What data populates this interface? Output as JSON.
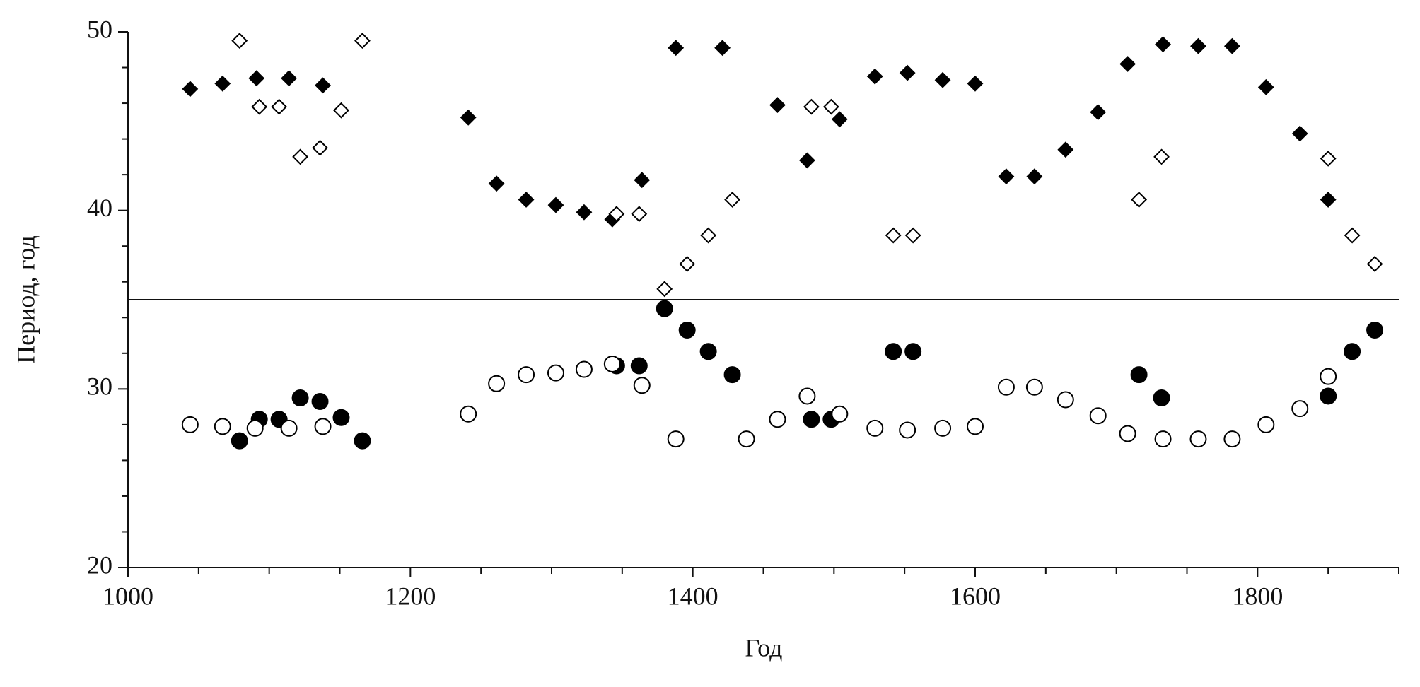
{
  "chart_data": {
    "type": "scatter",
    "x_label": "Год",
    "y_label": "Период, год",
    "xlim": [
      1000,
      1900
    ],
    "ylim": [
      20,
      50
    ],
    "xticks": [
      1000,
      1200,
      1400,
      1600,
      1800
    ],
    "yticks": [
      20,
      30,
      40,
      50
    ],
    "x_minor_ticks": [
      1050,
      1100,
      1150,
      1250,
      1300,
      1350,
      1450,
      1500,
      1550,
      1650,
      1700,
      1750,
      1850,
      1900
    ],
    "y_minor_ticks": [
      22,
      24,
      26,
      28,
      32,
      34,
      36,
      38,
      42,
      44,
      46,
      48
    ],
    "hline": 35,
    "series": [
      {
        "marker": "diamond",
        "filled": true,
        "color": "#000000",
        "x": [
          1044,
          1067,
          1091,
          1114,
          1138,
          1241,
          1261,
          1282,
          1303,
          1323,
          1343,
          1364,
          1388,
          1421,
          1460,
          1481,
          1504,
          1529,
          1552,
          1577,
          1600,
          1622,
          1642,
          1664,
          1687,
          1708,
          1733,
          1758,
          1782,
          1806,
          1830,
          1850
        ],
        "values": [
          46.8,
          47.1,
          47.4,
          47.4,
          47.0,
          45.2,
          41.5,
          40.6,
          40.3,
          39.9,
          39.5,
          41.7,
          49.1,
          49.1,
          45.9,
          42.8,
          45.1,
          47.5,
          47.7,
          47.3,
          47.1,
          41.9,
          41.9,
          43.4,
          45.5,
          48.2,
          49.3,
          49.2,
          49.2,
          46.9,
          44.3,
          40.6
        ]
      },
      {
        "marker": "diamond",
        "filled": false,
        "color": "#000000",
        "x": [
          1079,
          1093,
          1107,
          1122,
          1136,
          1151,
          1166,
          1346,
          1362,
          1380,
          1396,
          1411,
          1428,
          1484,
          1498,
          1542,
          1556,
          1716,
          1732,
          1850,
          1867,
          1883
        ],
        "values": [
          49.5,
          45.8,
          45.8,
          43.0,
          43.5,
          45.6,
          49.5,
          39.8,
          39.8,
          35.6,
          37.0,
          38.6,
          40.6,
          45.8,
          45.8,
          38.6,
          38.6,
          40.6,
          43.0,
          42.9,
          38.6,
          37.0
        ]
      },
      {
        "marker": "circle",
        "filled": true,
        "color": "#000000",
        "x": [
          1079,
          1093,
          1107,
          1122,
          1136,
          1151,
          1166,
          1346,
          1362,
          1380,
          1396,
          1411,
          1428,
          1484,
          1498,
          1542,
          1556,
          1716,
          1732,
          1850,
          1867,
          1883
        ],
        "values": [
          27.1,
          28.3,
          28.3,
          29.5,
          29.3,
          28.4,
          27.1,
          31.3,
          31.3,
          34.5,
          33.3,
          32.1,
          30.8,
          28.3,
          28.3,
          32.1,
          32.1,
          30.8,
          29.5,
          29.6,
          32.1,
          33.3
        ]
      },
      {
        "marker": "circle",
        "filled": false,
        "color": "#000000",
        "x": [
          1044,
          1067,
          1090,
          1114,
          1138,
          1241,
          1261,
          1282,
          1303,
          1323,
          1343,
          1364,
          1388,
          1438,
          1460,
          1481,
          1504,
          1529,
          1552,
          1577,
          1600,
          1622,
          1642,
          1664,
          1687,
          1708,
          1733,
          1758,
          1782,
          1806,
          1830,
          1850
        ],
        "values": [
          28.0,
          27.9,
          27.8,
          27.8,
          27.9,
          28.6,
          30.3,
          30.8,
          30.9,
          31.1,
          31.4,
          30.2,
          27.2,
          27.2,
          28.3,
          29.6,
          28.6,
          27.8,
          27.7,
          27.8,
          27.9,
          30.1,
          30.1,
          29.4,
          28.5,
          27.5,
          27.2,
          27.2,
          27.2,
          28.0,
          28.9,
          30.7
        ]
      }
    ]
  }
}
